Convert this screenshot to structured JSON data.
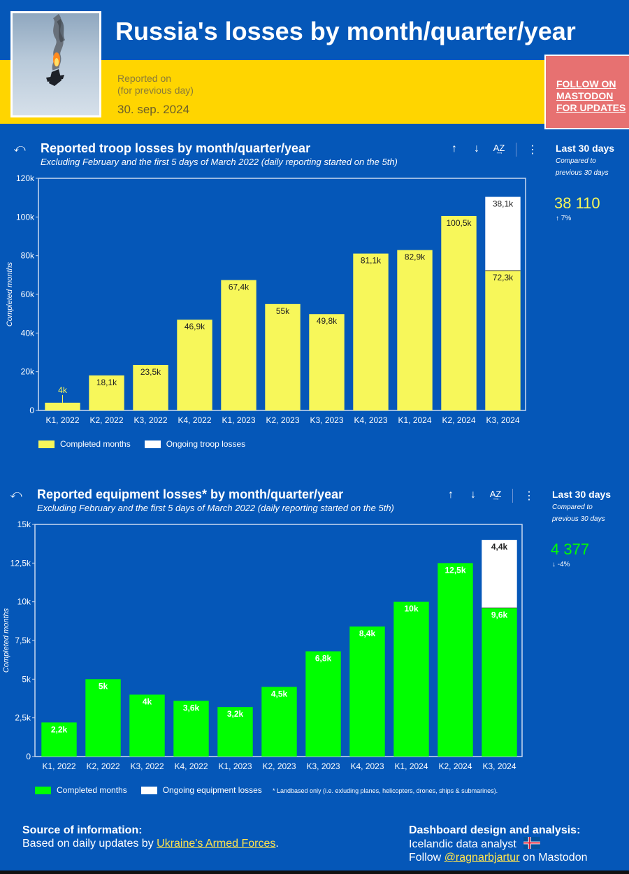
{
  "header": {
    "title": "Russia's losses by month/quarter/year",
    "reported_label_1": "Reported on",
    "reported_label_2": "(for previous day)",
    "reported_date": "30. sep. 2024",
    "follow_button": "FOLLOW ON MASTODON FOR UPDATES"
  },
  "troop_section": {
    "title": "Reported troop losses by month/quarter/year",
    "subtitle": "Excluding February and the first 5 days of March 2022 (daily reporting started on the 5th)",
    "side": {
      "title": "Last 30 days",
      "note_1": "Compared to",
      "note_2": "previous 30 days",
      "value": "38 110",
      "change": "7%",
      "value_color": "#f7f75a"
    },
    "legend": [
      "Completed months",
      "Ongoing troop losses"
    ]
  },
  "equipment_section": {
    "title": "Reported equipment losses* by month/quarter/year",
    "subtitle": "Excluding February and the first 5 days of March 2022 (daily reporting started on the 5th)",
    "side": {
      "title": "Last 30 days",
      "note_1": "Compared to",
      "note_2": "previous 30 days",
      "value": "4 377",
      "change": "-4%",
      "value_color": "#00ff00"
    },
    "legend": [
      "Completed months",
      "Ongoing equipment losses"
    ],
    "note": "* Landbased only (i.e. exluding planes, helicopters, drones, ships & submarines)."
  },
  "toolbar": {
    "reset_icon": "reset-icon",
    "sort_asc_icon": "arrow-up-icon",
    "sort_desc_icon": "arrow-down-icon",
    "sort_az_icon": "sort-az-icon",
    "more_icon": "more-vert-icon",
    "glyph_reset": "⤺",
    "glyph_up": "↑",
    "glyph_down": "↓",
    "glyph_az": "A͢Z",
    "glyph_more": "⋮"
  },
  "footer": {
    "source_head": "Source of information:",
    "source_text": "Based on daily updates by ",
    "source_link": "Ukraine's Armed Forces",
    "source_end": ".",
    "design_head": "Dashboard design and analysis:",
    "design_text": "Icelandic data analyst",
    "follow_text": "Follow ",
    "follow_link": "@ragnarbjartur",
    "follow_end": " on Mastodon"
  },
  "chart_data": [
    {
      "type": "bar",
      "title": "Reported troop losses by month/quarter/year",
      "ylabel": "Completed months",
      "ylim": [
        0,
        120000
      ],
      "yticks": [
        "0",
        "20k",
        "40k",
        "60k",
        "80k",
        "100k",
        "120k"
      ],
      "categories": [
        "K1, 2022",
        "K2, 2022",
        "K3, 2022",
        "K4, 2022",
        "K1, 2023",
        "K2, 2023",
        "K3, 2023",
        "K4, 2023",
        "K1, 2024",
        "K2, 2024",
        "K3, 2024"
      ],
      "series": [
        {
          "name": "Completed months",
          "color": "#f7f75a",
          "values": [
            4000,
            18100,
            23500,
            46900,
            67400,
            55000,
            49800,
            81100,
            82900,
            100500,
            72300
          ],
          "labels": [
            "4k",
            "18,1k",
            "23,5k",
            "46,9k",
            "67,4k",
            "55k",
            "49,8k",
            "81,1k",
            "82,9k",
            "100,5k",
            "72,3k"
          ]
        },
        {
          "name": "Ongoing troop losses",
          "color": "#ffffff",
          "values": [
            0,
            0,
            0,
            0,
            0,
            0,
            0,
            0,
            0,
            0,
            38100
          ],
          "labels": [
            "",
            "",
            "",
            "",
            "",
            "",
            "",
            "",
            "",
            "",
            "38,1k"
          ]
        }
      ],
      "label_color": "#222222",
      "grid": false
    },
    {
      "type": "bar",
      "title": "Reported equipment losses* by month/quarter/year",
      "ylabel": "Completed months",
      "ylim": [
        0,
        15000
      ],
      "yticks": [
        "0",
        "2,5k",
        "5k",
        "7,5k",
        "10k",
        "12,5k",
        "15k"
      ],
      "categories": [
        "K1, 2022",
        "K2, 2022",
        "K3, 2022",
        "K4, 2022",
        "K1, 2023",
        "K2, 2023",
        "K3, 2023",
        "K4, 2023",
        "K1, 2024",
        "K2, 2024",
        "K3, 2024"
      ],
      "series": [
        {
          "name": "Completed months",
          "color": "#00ff00",
          "values": [
            2200,
            5000,
            4000,
            3600,
            3200,
            4500,
            6800,
            8400,
            10000,
            12500,
            9600
          ],
          "labels": [
            "2,2k",
            "5k",
            "4k",
            "3,6k",
            "3,2k",
            "4,5k",
            "6,8k",
            "8,4k",
            "10k",
            "12,5k",
            "9,6k"
          ]
        },
        {
          "name": "Ongoing equipment losses",
          "color": "#ffffff",
          "values": [
            0,
            0,
            0,
            0,
            0,
            0,
            0,
            0,
            0,
            0,
            4400
          ],
          "labels": [
            "",
            "",
            "",
            "",
            "",
            "",
            "",
            "",
            "",
            "",
            "4,4k"
          ]
        }
      ],
      "label_color": "#ffffff",
      "grid": false
    }
  ]
}
